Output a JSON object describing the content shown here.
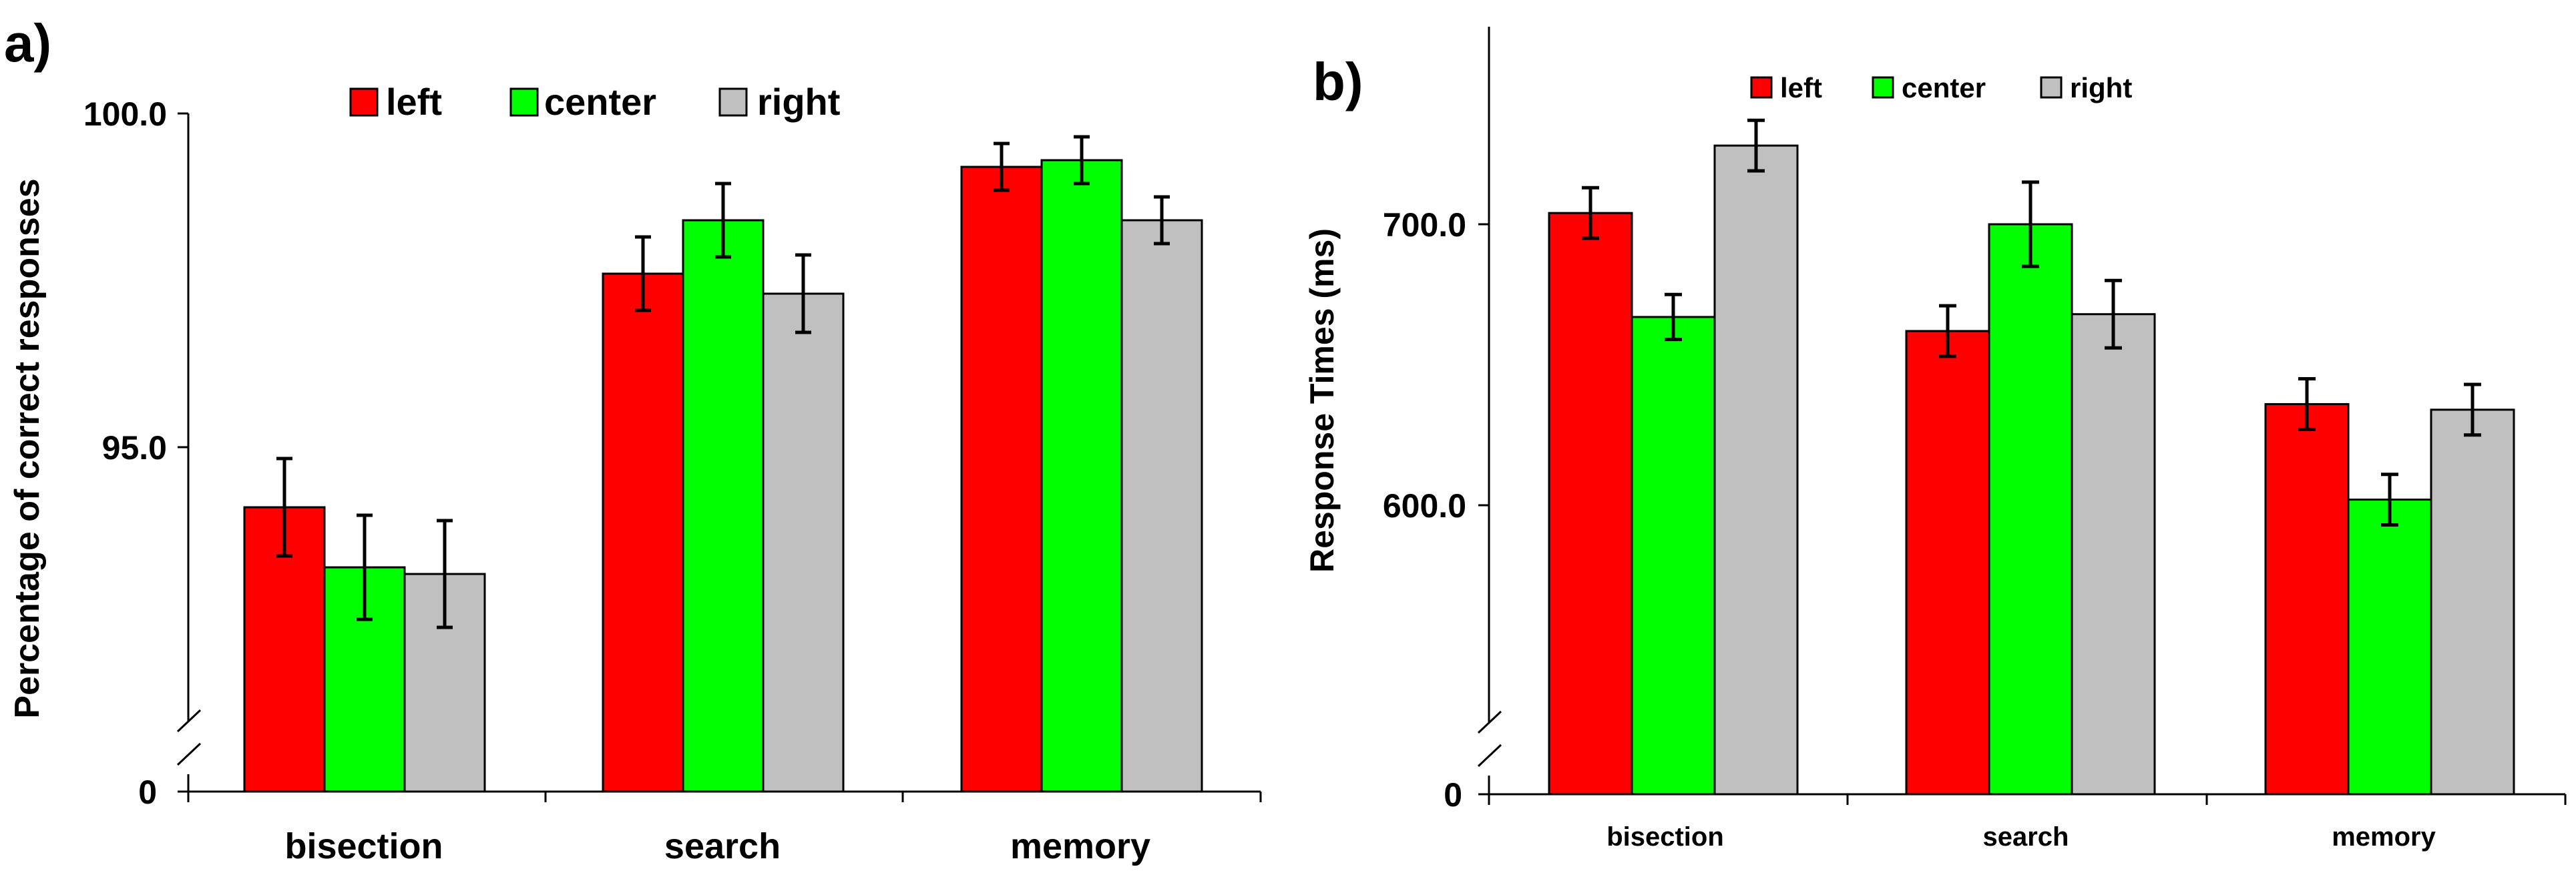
{
  "colors": {
    "left": "#ff0000",
    "center": "#00ff00",
    "right": "#c0c0c0"
  },
  "chart_data": [
    {
      "panel_label": "a)",
      "type": "bar",
      "categories": [
        "bisection",
        "search",
        "memory"
      ],
      "series": [
        {
          "name": "left",
          "values": [
            94.1,
            97.6,
            99.2
          ],
          "errors": [
            0.73,
            0.55,
            0.35
          ]
        },
        {
          "name": "center",
          "values": [
            93.2,
            98.4,
            99.3
          ],
          "errors": [
            0.78,
            0.55,
            0.35
          ]
        },
        {
          "name": "right",
          "values": [
            93.1,
            97.3,
            98.4
          ],
          "errors": [
            0.8,
            0.58,
            0.35
          ]
        }
      ],
      "ylabel": "Percentage of correct responses",
      "xlabel": "",
      "yticks": [
        "0",
        "95.0",
        "100.0"
      ],
      "ylim": [
        90,
        100
      ],
      "axis_break": true,
      "legend_position": "top"
    },
    {
      "panel_label": "b)",
      "type": "bar",
      "categories": [
        "bisection",
        "search",
        "memory"
      ],
      "series": [
        {
          "name": "left",
          "values": [
            704,
            662,
            636
          ],
          "errors": [
            9,
            9,
            9
          ]
        },
        {
          "name": "center",
          "values": [
            667,
            700,
            602
          ],
          "errors": [
            8,
            15,
            9
          ]
        },
        {
          "name": "right",
          "values": [
            728,
            668,
            634
          ],
          "errors": [
            9,
            12,
            9
          ]
        }
      ],
      "ylabel": "Response Times (ms)",
      "xlabel": "",
      "yticks": [
        "0",
        "600.0",
        "700.0"
      ],
      "ylim": [
        500,
        775
      ],
      "axis_break": true,
      "legend_position": "top"
    }
  ]
}
